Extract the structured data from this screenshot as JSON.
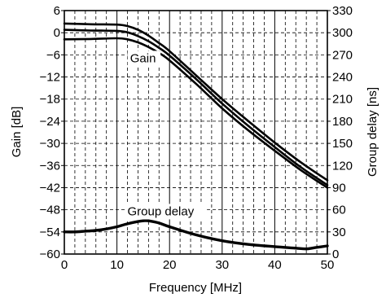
{
  "chart_data": {
    "type": "line",
    "xlabel": "Frequency [MHz]",
    "ylabel": "Gain [dB]",
    "ylabel_right": "Group delay [ns]",
    "xlim": [
      0,
      50
    ],
    "ylim": [
      -60,
      6
    ],
    "ylim_right": [
      0,
      330
    ],
    "x_ticks": [
      "0",
      "10",
      "20",
      "30",
      "40",
      "50"
    ],
    "y_ticks": [
      "6",
      "0",
      "−6",
      "−12",
      "−18",
      "−24",
      "−30",
      "−36",
      "−42",
      "−48",
      "−54",
      "−60"
    ],
    "y_ticks_right": [
      "330",
      "300",
      "270",
      "240",
      "210",
      "180",
      "150",
      "120",
      "90",
      "60",
      "30",
      "0"
    ],
    "grid": "dashed, major at every 10 MHz solid",
    "annotations": [
      {
        "text": "Gain",
        "x": 12.5,
        "y": -8
      },
      {
        "text": "Group delay",
        "x": 12,
        "y": -49.5
      }
    ],
    "series": [
      {
        "axis": "left",
        "x": [
          0,
          5,
          10,
          12,
          14,
          16,
          18,
          20,
          25,
          30,
          35,
          40,
          45,
          50
        ],
        "values": [
          2.5,
          2.3,
          2.2,
          1.8,
          0.8,
          -0.8,
          -2.8,
          -5.0,
          -11.5,
          -18.0,
          -24.0,
          -29.8,
          -35.2,
          -40.0
        ]
      },
      {
        "axis": "left",
        "x": [
          0,
          5,
          10,
          12,
          14,
          16,
          18,
          20,
          25,
          30,
          35,
          40,
          45,
          50
        ],
        "values": [
          0.8,
          0.6,
          0.5,
          0.1,
          -0.9,
          -2.3,
          -4.1,
          -6.2,
          -12.5,
          -19.2,
          -25.3,
          -31.0,
          -36.5,
          -41.3
        ]
      },
      {
        "axis": "left",
        "x": [
          0,
          5,
          10,
          12,
          14,
          16,
          18,
          20,
          25,
          30,
          35,
          40,
          45,
          50
        ],
        "values": [
          -1.8,
          -1.7,
          -1.5,
          -1.8,
          -2.6,
          -3.9,
          -5.5,
          -7.5,
          -13.8,
          -20.5,
          -26.5,
          -32.0,
          -37.3,
          -42.0
        ]
      },
      {
        "axis": "right",
        "x": [
          0,
          2,
          4,
          6,
          8,
          10,
          12,
          14,
          15,
          16,
          18,
          20,
          25,
          30,
          35,
          40,
          44,
          46,
          48,
          50
        ],
        "values": [
          30,
          30,
          31,
          32,
          34,
          37,
          41,
          44,
          45,
          45,
          42,
          37,
          26,
          18,
          13,
          10,
          8,
          7,
          9,
          11
        ]
      }
    ]
  }
}
